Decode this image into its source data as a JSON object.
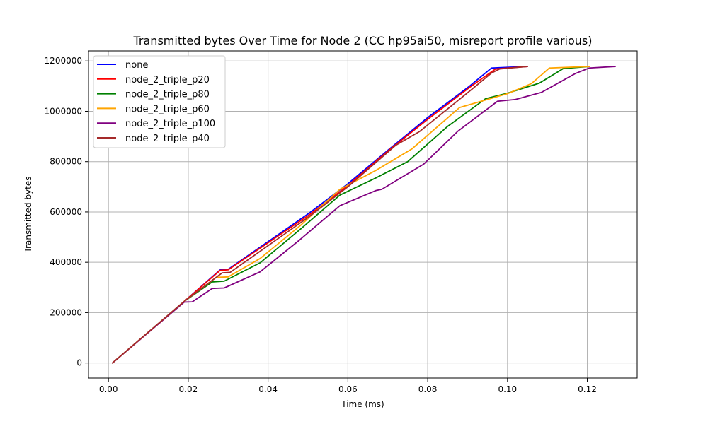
{
  "chart_data": {
    "type": "line",
    "title": "Transmitted bytes Over Time for Node 2 (CC hp95ai50, misreport profile various)",
    "xlabel": "Time (ms)",
    "ylabel": "Transmitted bytes",
    "xlim": [
      -0.005,
      0.1325
    ],
    "ylim": [
      -60000,
      1240000
    ],
    "x_ticks": [
      0.0,
      0.02,
      0.04,
      0.06,
      0.08,
      0.1,
      0.12
    ],
    "x_tick_labels": [
      "0.00",
      "0.02",
      "0.04",
      "0.06",
      "0.08",
      "0.10",
      "0.12"
    ],
    "y_ticks": [
      0,
      200000,
      400000,
      600000,
      800000,
      1000000,
      1200000
    ],
    "y_tick_labels": [
      "0",
      "200000",
      "400000",
      "600000",
      "800000",
      "1000000",
      "1200000"
    ],
    "grid": true,
    "legend_position": "top-left",
    "series": [
      {
        "name": "none",
        "color": "#0000ff",
        "points": [
          [
            0.001,
            0
          ],
          [
            0.019,
            245000
          ],
          [
            0.028,
            370000
          ],
          [
            0.03,
            372000
          ],
          [
            0.05,
            592000
          ],
          [
            0.06,
            712000
          ],
          [
            0.07,
            845000
          ],
          [
            0.08,
            975000
          ],
          [
            0.0905,
            1100000
          ],
          [
            0.096,
            1172000
          ],
          [
            0.105,
            1178000
          ]
        ]
      },
      {
        "name": "node_2_triple_p20",
        "color": "#ff0000",
        "points": [
          [
            0.001,
            0
          ],
          [
            0.019,
            245000
          ],
          [
            0.028,
            368000
          ],
          [
            0.03,
            370000
          ],
          [
            0.05,
            585000
          ],
          [
            0.06,
            705000
          ],
          [
            0.07,
            842000
          ],
          [
            0.08,
            968000
          ],
          [
            0.0905,
            1095000
          ],
          [
            0.097,
            1168000
          ],
          [
            0.105,
            1178000
          ]
        ]
      },
      {
        "name": "node_2_triple_p80",
        "color": "#008000",
        "points": [
          [
            0.001,
            0
          ],
          [
            0.019,
            245000
          ],
          [
            0.026,
            322000
          ],
          [
            0.029,
            325000
          ],
          [
            0.038,
            398000
          ],
          [
            0.048,
            530000
          ],
          [
            0.058,
            667000
          ],
          [
            0.067,
            735000
          ],
          [
            0.075,
            800000
          ],
          [
            0.085,
            940000
          ],
          [
            0.0945,
            1050000
          ],
          [
            0.1,
            1072000
          ],
          [
            0.108,
            1112000
          ],
          [
            0.114,
            1170000
          ],
          [
            0.1205,
            1178000
          ]
        ]
      },
      {
        "name": "node_2_triple_p60",
        "color": "#ffa500",
        "points": [
          [
            0.001,
            0
          ],
          [
            0.019,
            245000
          ],
          [
            0.027,
            340000
          ],
          [
            0.03,
            342000
          ],
          [
            0.038,
            415000
          ],
          [
            0.048,
            545000
          ],
          [
            0.058,
            690000
          ],
          [
            0.067,
            765000
          ],
          [
            0.076,
            850000
          ],
          [
            0.088,
            1015000
          ],
          [
            0.1,
            1070000
          ],
          [
            0.106,
            1110000
          ],
          [
            0.1105,
            1172000
          ],
          [
            0.1205,
            1178000
          ]
        ]
      },
      {
        "name": "node_2_triple_p100",
        "color": "#800080",
        "points": [
          [
            0.001,
            0
          ],
          [
            0.019,
            242000
          ],
          [
            0.021,
            243000
          ],
          [
            0.026,
            296000
          ],
          [
            0.029,
            298000
          ],
          [
            0.038,
            362000
          ],
          [
            0.048,
            490000
          ],
          [
            0.058,
            625000
          ],
          [
            0.067,
            685000
          ],
          [
            0.0685,
            690000
          ],
          [
            0.079,
            790000
          ],
          [
            0.0875,
            920000
          ],
          [
            0.0975,
            1040000
          ],
          [
            0.102,
            1047000
          ],
          [
            0.1085,
            1075000
          ],
          [
            0.117,
            1150000
          ],
          [
            0.1205,
            1172000
          ],
          [
            0.127,
            1178000
          ]
        ]
      },
      {
        "name": "node_2_triple_p40",
        "color": "#a52a2a",
        "points": [
          [
            0.001,
            0
          ],
          [
            0.019,
            245000
          ],
          [
            0.0285,
            358000
          ],
          [
            0.0305,
            360000
          ],
          [
            0.05,
            578000
          ],
          [
            0.06,
            700000
          ],
          [
            0.072,
            865000
          ],
          [
            0.078,
            920000
          ],
          [
            0.0905,
            1080000
          ],
          [
            0.096,
            1152000
          ],
          [
            0.098,
            1168000
          ],
          [
            0.105,
            1178000
          ]
        ]
      }
    ]
  }
}
